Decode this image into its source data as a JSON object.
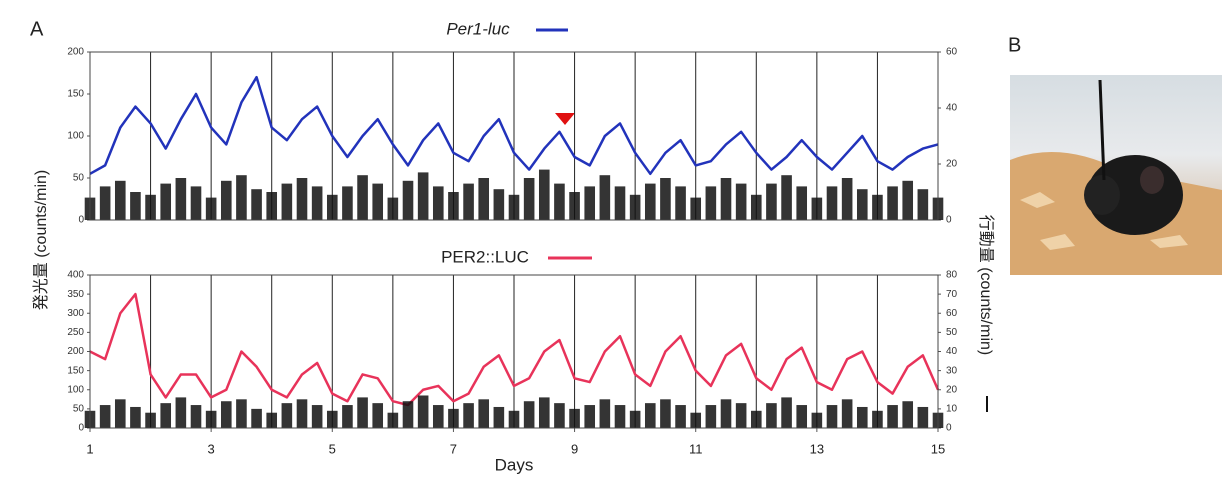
{
  "labels": {
    "panel_a": "A",
    "panel_b": "B"
  },
  "chart_data": [
    {
      "type": "line",
      "title": "Per1-luc",
      "ylabel": "発光量 (counts/min)",
      "y2label": "行動量 (counts/min)",
      "xlim": [
        1,
        15
      ],
      "xgrid": [
        2,
        3,
        4,
        5,
        6,
        7,
        8,
        9,
        10,
        11,
        12,
        13,
        14
      ],
      "ylim": [
        0,
        200
      ],
      "yticks": [
        0,
        50,
        100,
        150,
        200
      ],
      "y2lim": [
        0,
        60
      ],
      "y2ticks": [
        0,
        20,
        40,
        60
      ],
      "x": [
        1,
        1.25,
        1.5,
        1.75,
        2,
        2.25,
        2.5,
        2.75,
        3,
        3.25,
        3.5,
        3.75,
        4,
        4.25,
        4.5,
        4.75,
        5,
        5.25,
        5.5,
        5.75,
        6,
        6.25,
        6.5,
        6.75,
        7,
        7.25,
        7.5,
        7.75,
        8,
        8.25,
        8.5,
        8.75,
        9,
        9.25,
        9.5,
        9.75,
        10,
        10.25,
        10.5,
        10.75,
        11,
        11.25,
        11.5,
        11.75,
        12,
        12.25,
        12.5,
        12.75,
        13,
        13.25,
        13.5,
        13.75,
        14,
        14.25,
        14.5,
        14.75,
        15
      ],
      "series": [
        {
          "name": "Per1-luc",
          "color": "#2233bb",
          "values": [
            55,
            65,
            110,
            135,
            115,
            85,
            120,
            150,
            110,
            90,
            140,
            170,
            110,
            95,
            120,
            135,
            100,
            75,
            100,
            120,
            90,
            65,
            95,
            115,
            80,
            70,
            100,
            120,
            80,
            60,
            85,
            105,
            75,
            65,
            100,
            115,
            80,
            55,
            80,
            95,
            65,
            70,
            90,
            105,
            80,
            60,
            75,
            95,
            75,
            60,
            80,
            100,
            70,
            60,
            75,
            85,
            90
          ]
        },
        {
          "type": "bar",
          "axis": "y2",
          "color": "#111111",
          "values": [
            8,
            12,
            14,
            10,
            9,
            13,
            15,
            12,
            8,
            14,
            16,
            11,
            10,
            13,
            15,
            12,
            9,
            12,
            16,
            13,
            8,
            14,
            17,
            12,
            10,
            13,
            15,
            11,
            9,
            15,
            18,
            13,
            10,
            12,
            16,
            12,
            9,
            13,
            15,
            12,
            8,
            12,
            15,
            13,
            9,
            13,
            16,
            12,
            8,
            12,
            15,
            11,
            9,
            12,
            14,
            11,
            8
          ]
        }
      ]
    },
    {
      "type": "line",
      "title": "PER2::LUC",
      "xlabel": "Days",
      "xlim": [
        1,
        15
      ],
      "xticks": [
        1,
        3,
        5,
        7,
        9,
        11,
        13,
        15
      ],
      "xgrid": [
        2,
        3,
        4,
        5,
        6,
        7,
        8,
        9,
        10,
        11,
        12,
        13,
        14
      ],
      "ylim": [
        0,
        400
      ],
      "yticks": [
        0,
        50,
        100,
        150,
        200,
        250,
        300,
        350,
        400
      ],
      "y2lim": [
        0,
        80
      ],
      "y2ticks": [
        0,
        10,
        20,
        30,
        40,
        50,
        60,
        70,
        80
      ],
      "x": [
        1,
        1.25,
        1.5,
        1.75,
        2,
        2.25,
        2.5,
        2.75,
        3,
        3.25,
        3.5,
        3.75,
        4,
        4.25,
        4.5,
        4.75,
        5,
        5.25,
        5.5,
        5.75,
        6,
        6.25,
        6.5,
        6.75,
        7,
        7.25,
        7.5,
        7.75,
        8,
        8.25,
        8.5,
        8.75,
        9,
        9.25,
        9.5,
        9.75,
        10,
        10.25,
        10.5,
        10.75,
        11,
        11.25,
        11.5,
        11.75,
        12,
        12.25,
        12.5,
        12.75,
        13,
        13.25,
        13.5,
        13.75,
        14,
        14.25,
        14.5,
        14.75,
        15
      ],
      "series": [
        {
          "name": "PER2::LUC",
          "color": "#e8335a",
          "values": [
            200,
            180,
            300,
            350,
            140,
            80,
            140,
            140,
            80,
            100,
            200,
            160,
            100,
            80,
            140,
            170,
            90,
            70,
            140,
            130,
            70,
            60,
            100,
            110,
            70,
            90,
            160,
            190,
            110,
            130,
            200,
            230,
            130,
            120,
            200,
            240,
            140,
            110,
            200,
            240,
            150,
            110,
            190,
            220,
            130,
            100,
            180,
            210,
            120,
            100,
            180,
            200,
            120,
            90,
            160,
            190,
            100
          ]
        },
        {
          "type": "bar",
          "axis": "y2",
          "color": "#111111",
          "values": [
            9,
            12,
            15,
            11,
            8,
            13,
            16,
            12,
            9,
            14,
            15,
            10,
            8,
            13,
            15,
            12,
            9,
            12,
            16,
            13,
            8,
            14,
            17,
            12,
            10,
            13,
            15,
            11,
            9,
            14,
            16,
            13,
            10,
            12,
            15,
            12,
            9,
            13,
            15,
            12,
            8,
            12,
            15,
            13,
            9,
            13,
            16,
            12,
            8,
            12,
            15,
            11,
            9,
            12,
            14,
            11,
            8
          ]
        }
      ]
    }
  ]
}
